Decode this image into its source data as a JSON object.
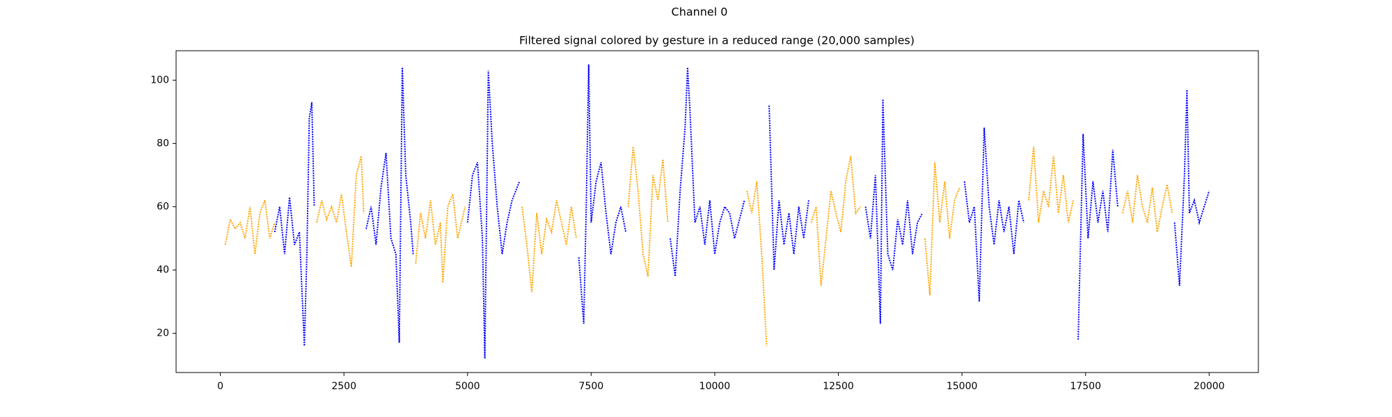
{
  "chart_data": {
    "type": "line",
    "title": "Channel 0",
    "subtitle": "Filtered signal colored by gesture in a reduced range (20,000 samples)",
    "xlim": [
      -895,
      20995
    ],
    "ylim": [
      7.6,
      109.3
    ],
    "xticks": [
      0,
      2500,
      5000,
      7500,
      10000,
      12500,
      15000,
      17500,
      20000
    ],
    "yticks": [
      20,
      40,
      60,
      80,
      100
    ],
    "series": [
      {
        "color": "orange",
        "x": [
          100,
          200,
          300,
          400,
          500,
          600,
          700,
          800,
          900,
          1000,
          1100
        ],
        "values": [
          48,
          56,
          53,
          55,
          50,
          60,
          45,
          58,
          62,
          50,
          55
        ]
      },
      {
        "color": "blue",
        "x": [
          1100,
          1200,
          1300,
          1400,
          1500,
          1600,
          1700,
          1750,
          1800,
          1850,
          1900
        ],
        "values": [
          52,
          60,
          45,
          63,
          48,
          52,
          16,
          45,
          88,
          93,
          60
        ]
      },
      {
        "color": "orange",
        "x": [
          1950,
          2050,
          2150,
          2250,
          2350,
          2450,
          2550,
          2650,
          2750,
          2850,
          2900
        ],
        "values": [
          55,
          62,
          56,
          60,
          55,
          64,
          52,
          41,
          70,
          76,
          58
        ]
      },
      {
        "color": "blue",
        "x": [
          2950,
          3050,
          3150,
          3250,
          3350,
          3450,
          3550,
          3620,
          3680,
          3750,
          3850,
          3900
        ],
        "values": [
          53,
          60,
          48,
          66,
          77,
          50,
          45,
          17,
          104,
          70,
          55,
          45
        ]
      },
      {
        "color": "orange",
        "x": [
          3950,
          4050,
          4150,
          4250,
          4350,
          4450,
          4500,
          4600,
          4700,
          4800,
          4950
        ],
        "values": [
          42,
          58,
          50,
          62,
          48,
          55,
          36,
          60,
          64,
          50,
          60
        ]
      },
      {
        "color": "blue",
        "x": [
          5000,
          5100,
          5200,
          5300,
          5350,
          5420,
          5500,
          5600,
          5700,
          5800,
          5900,
          6050
        ],
        "values": [
          55,
          70,
          74,
          50,
          12,
          103,
          80,
          60,
          45,
          55,
          62,
          68
        ]
      },
      {
        "color": "orange",
        "x": [
          6100,
          6200,
          6300,
          6400,
          6500,
          6600,
          6700,
          6800,
          6900,
          7000,
          7100,
          7200
        ],
        "values": [
          60,
          48,
          33,
          58,
          45,
          56,
          52,
          62,
          55,
          48,
          60,
          50
        ]
      },
      {
        "color": "blue",
        "x": [
          7250,
          7350,
          7400,
          7450,
          7500,
          7600,
          7700,
          7800,
          7900,
          8000,
          8100,
          8200
        ],
        "values": [
          44,
          23,
          60,
          105,
          55,
          68,
          74,
          58,
          45,
          55,
          60,
          52
        ]
      },
      {
        "color": "orange",
        "x": [
          8250,
          8350,
          8450,
          8550,
          8650,
          8750,
          8850,
          8950,
          9050
        ],
        "values": [
          60,
          79,
          65,
          45,
          38,
          70,
          62,
          75,
          55
        ]
      },
      {
        "color": "blue",
        "x": [
          9100,
          9200,
          9300,
          9400,
          9450,
          9500,
          9600,
          9700,
          9800,
          9900,
          10000,
          10100,
          10200,
          10300,
          10400,
          10500,
          10600
        ],
        "values": [
          50,
          38,
          65,
          85,
          104,
          90,
          55,
          60,
          48,
          62,
          45,
          55,
          60,
          58,
          50,
          56,
          62
        ]
      },
      {
        "color": "orange",
        "x": [
          10650,
          10750,
          10850,
          10950,
          11050
        ],
        "values": [
          65,
          58,
          68,
          45,
          16
        ]
      },
      {
        "color": "blue",
        "x": [
          11100,
          11200,
          11300,
          11400,
          11500,
          11600,
          11700,
          11800,
          11900
        ],
        "values": [
          92,
          40,
          62,
          48,
          58,
          45,
          60,
          50,
          62
        ]
      },
      {
        "color": "orange",
        "x": [
          11950,
          12050,
          12150,
          12250,
          12350,
          12450,
          12550,
          12650,
          12750,
          12850,
          12950
        ],
        "values": [
          55,
          60,
          35,
          50,
          65,
          58,
          52,
          68,
          76,
          58,
          60
        ]
      },
      {
        "color": "blue",
        "x": [
          13050,
          13150,
          13250,
          13350,
          13400,
          13500,
          13600,
          13700,
          13800,
          13900,
          14000,
          14100,
          14200
        ],
        "values": [
          60,
          50,
          70,
          23,
          94,
          45,
          40,
          56,
          48,
          62,
          45,
          55,
          58
        ]
      },
      {
        "color": "orange",
        "x": [
          14250,
          14350,
          14450,
          14550,
          14650,
          14750,
          14850,
          14950
        ],
        "values": [
          50,
          32,
          74,
          55,
          68,
          50,
          62,
          66
        ]
      },
      {
        "color": "blue",
        "x": [
          15050,
          15150,
          15250,
          15350,
          15450,
          15550,
          15650,
          15750,
          15850,
          15950,
          16050,
          16150,
          16250
        ],
        "values": [
          68,
          55,
          60,
          30,
          85,
          60,
          48,
          62,
          52,
          60,
          45,
          62,
          55
        ]
      },
      {
        "color": "orange",
        "x": [
          16350,
          16450,
          16550,
          16650,
          16750,
          16850,
          16950,
          17050,
          17150,
          17250
        ],
        "values": [
          62,
          79,
          55,
          65,
          60,
          76,
          58,
          70,
          55,
          62
        ]
      },
      {
        "color": "blue",
        "x": [
          17350,
          17450,
          17550,
          17650,
          17750,
          17850,
          17950,
          18050,
          18150
        ],
        "values": [
          18,
          83,
          50,
          68,
          55,
          65,
          52,
          78,
          60
        ]
      },
      {
        "color": "orange",
        "x": [
          18250,
          18350,
          18450,
          18550,
          18650,
          18750,
          18850,
          18950,
          19050,
          19150,
          19250
        ],
        "values": [
          58,
          65,
          55,
          70,
          60,
          55,
          66,
          52,
          60,
          67,
          58
        ]
      },
      {
        "color": "blue",
        "x": [
          19300,
          19400,
          19500,
          19550,
          19600,
          19700,
          19800,
          19900,
          20000
        ],
        "values": [
          55,
          35,
          70,
          97,
          58,
          62,
          55,
          60,
          65
        ]
      }
    ]
  }
}
